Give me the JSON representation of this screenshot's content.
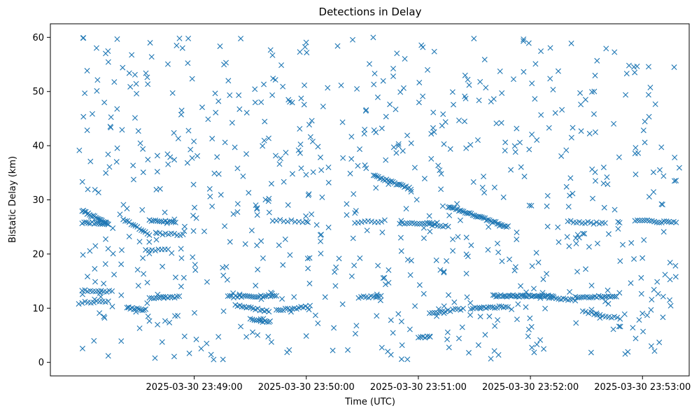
{
  "chart_data": {
    "type": "scatter",
    "title": "Detections in Delay",
    "xlabel": "Time (UTC)",
    "ylabel": "Bistatic Delay (km)",
    "marker": "x",
    "color": "#1f77b4",
    "grid": false,
    "legend": "none",
    "xlim": [
      "2025-03-30 23:47:43",
      "2025-03-30 23:53:25"
    ],
    "ylim": [
      -2.5,
      62.5
    ],
    "x_ticks": [
      "2025-03-30 23:49:00",
      "2025-03-30 23:50:00",
      "2025-03-30 23:51:00",
      "2025-03-30 23:52:00",
      "2025-03-30 23:53:00"
    ],
    "y_ticks": [
      0,
      10,
      20,
      30,
      40,
      50,
      60
    ],
    "tracks": [
      {
        "start": "2025-03-30 23:48:00",
        "end": "2025-03-30 23:48:14",
        "y0": 28.0,
        "y1": 25.5,
        "n": 22
      },
      {
        "start": "2025-03-30 23:48:00",
        "end": "2025-03-30 23:48:14",
        "y0": 25.8,
        "y1": 25.6,
        "n": 14
      },
      {
        "start": "2025-03-30 23:48:00",
        "end": "2025-03-30 23:48:16",
        "y0": 13.2,
        "y1": 13.1,
        "n": 12
      },
      {
        "start": "2025-03-30 23:48:00",
        "end": "2025-03-30 23:48:14",
        "y0": 11.0,
        "y1": 11.3,
        "n": 10
      },
      {
        "start": "2025-03-30 23:48:22",
        "end": "2025-03-30 23:48:36",
        "y0": 26.5,
        "y1": 23.5,
        "n": 14
      },
      {
        "start": "2025-03-30 23:48:24",
        "end": "2025-03-30 23:48:34",
        "y0": 10.0,
        "y1": 9.7,
        "n": 12
      },
      {
        "start": "2025-03-30 23:48:36",
        "end": "2025-03-30 23:48:50",
        "y0": 26.2,
        "y1": 25.9,
        "n": 14
      },
      {
        "start": "2025-03-30 23:48:36",
        "end": "2025-03-30 23:48:52",
        "y0": 11.9,
        "y1": 12.1,
        "n": 14
      },
      {
        "start": "2025-03-30 23:48:40",
        "end": "2025-03-30 23:48:54",
        "y0": 23.8,
        "y1": 23.5,
        "n": 10
      },
      {
        "start": "2025-03-30 23:49:18",
        "end": "2025-03-30 23:49:44",
        "y0": 12.1,
        "y1": 12.3,
        "n": 26
      },
      {
        "start": "2025-03-30 23:49:22",
        "end": "2025-03-30 23:49:40",
        "y0": 10.6,
        "y1": 9.4,
        "n": 16
      },
      {
        "start": "2025-03-30 23:49:30",
        "end": "2025-03-30 23:49:40",
        "y0": 8.0,
        "y1": 7.4,
        "n": 10
      },
      {
        "start": "2025-03-30 23:49:44",
        "end": "2025-03-30 23:50:02",
        "y0": 9.6,
        "y1": 10.3,
        "n": 16
      },
      {
        "start": "2025-03-30 23:49:42",
        "end": "2025-03-30 23:50:00",
        "y0": 26.2,
        "y1": 26.0,
        "n": 10
      },
      {
        "start": "2025-03-30 23:50:28",
        "end": "2025-03-30 23:50:40",
        "y0": 12.0,
        "y1": 12.2,
        "n": 10
      },
      {
        "start": "2025-03-30 23:50:26",
        "end": "2025-03-30 23:50:42",
        "y0": 25.8,
        "y1": 26.1,
        "n": 10
      },
      {
        "start": "2025-03-30 23:50:36",
        "end": "2025-03-30 23:50:56",
        "y0": 34.5,
        "y1": 32.0,
        "n": 24
      },
      {
        "start": "2025-03-30 23:50:50",
        "end": "2025-03-30 23:51:10",
        "y0": 25.6,
        "y1": 25.7,
        "n": 16
      },
      {
        "start": "2025-03-30 23:51:00",
        "end": "2025-03-30 23:51:06",
        "y0": 4.6,
        "y1": 4.7,
        "n": 6
      },
      {
        "start": "2025-03-30 23:51:06",
        "end": "2025-03-30 23:51:24",
        "y0": 9.1,
        "y1": 9.9,
        "n": 14
      },
      {
        "start": "2025-03-30 23:51:06",
        "end": "2025-03-30 23:51:16",
        "y0": 25.4,
        "y1": 25.1,
        "n": 8
      },
      {
        "start": "2025-03-30 23:51:16",
        "end": "2025-03-30 23:51:48",
        "y0": 28.8,
        "y1": 25.0,
        "n": 40
      },
      {
        "start": "2025-03-30 23:51:28",
        "end": "2025-03-30 23:51:48",
        "y0": 10.0,
        "y1": 10.3,
        "n": 18
      },
      {
        "start": "2025-03-30 23:51:40",
        "end": "2025-03-30 23:52:12",
        "y0": 12.3,
        "y1": 12.2,
        "n": 40
      },
      {
        "start": "2025-03-30 23:52:10",
        "end": "2025-03-30 23:52:24",
        "y0": 12.0,
        "y1": 11.5,
        "n": 12
      },
      {
        "start": "2025-03-30 23:52:24",
        "end": "2025-03-30 23:52:46",
        "y0": 12.0,
        "y1": 12.2,
        "n": 22
      },
      {
        "start": "2025-03-30 23:52:28",
        "end": "2025-03-30 23:52:48",
        "y0": 9.4,
        "y1": 8.1,
        "n": 14
      },
      {
        "start": "2025-03-30 23:52:20",
        "end": "2025-03-30 23:52:40",
        "y0": 26.0,
        "y1": 25.6,
        "n": 14
      },
      {
        "start": "2025-03-30 23:52:56",
        "end": "2025-03-30 23:53:18",
        "y0": 26.2,
        "y1": 25.8,
        "n": 18
      },
      {
        "start": "2025-03-30 23:48:34",
        "end": "2025-03-30 23:48:46",
        "y0": 20.8,
        "y1": 20.7,
        "n": 8
      }
    ],
    "clutter": {
      "start": "2025-03-30 23:47:58",
      "end": "2025-03-30 23:53:20",
      "y_min": 0.5,
      "y_max": 60.0,
      "n": 720,
      "seed": 7
    }
  }
}
